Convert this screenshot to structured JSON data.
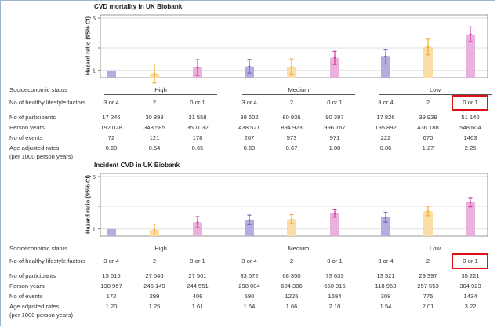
{
  "chart_data": [
    {
      "type": "bar",
      "title": "CVD mortality in UK Biobank",
      "ylabel": "Hazard ratio (95% CI)",
      "yscale": "log",
      "ylim": [
        0.8,
        5.5
      ],
      "yticks": [
        1,
        2,
        5
      ],
      "ytick_labels": [
        "1",
        "",
        "5"
      ],
      "groups": [
        "High",
        "Medium",
        "Low"
      ],
      "categories": [
        "3 or 4",
        "2",
        "0 or 1",
        "3 or 4",
        "2",
        "0 or 1",
        "3 or 4",
        "2",
        "0 or 1"
      ],
      "colors": [
        "#b3aee0",
        "#fbdea6",
        "#eab1dc",
        "#b3aee0",
        "#fbdea6",
        "#eab1dc",
        "#b3aee0",
        "#fbdea6",
        "#eab1dc"
      ],
      "error_colors": [
        "#6b64b5",
        "#f0b030",
        "#cc3c9c",
        "#6b64b5",
        "#f0b030",
        "#cc3c9c",
        "#6b64b5",
        "#f0b030",
        "#cc3c9c"
      ],
      "values": [
        1.0,
        0.91,
        1.09,
        1.13,
        1.12,
        1.47,
        1.52,
        2.06,
        3.03
      ],
      "ci_low": [
        1.0,
        0.68,
        0.86,
        0.92,
        0.89,
        1.2,
        1.22,
        1.62,
        2.42
      ],
      "ci_high": [
        1.0,
        1.22,
        1.39,
        1.4,
        1.42,
        1.8,
        1.89,
        2.62,
        3.8
      ],
      "table": {
        "socio_label": "Socioeconomic status",
        "lifestyle_label": "No of healthy lifestyle factors",
        "rows": [
          {
            "label": "No of participants",
            "values": [
              "17 246",
              "30 893",
              "31 558",
              "39 602",
              "80 936",
              "90 397",
              "17 826",
              "39 939",
              "51 140"
            ]
          },
          {
            "label": "Person years",
            "values": [
              "192 028",
              "343 585",
              "350 032",
              "438 521",
              "894 923",
              "996 167",
              "195 892",
              "436 188",
              "548 604"
            ]
          },
          {
            "label": "No of events",
            "values": [
              "72",
              "121",
              "178",
              "267",
              "573",
              "971",
              "222",
              "670",
              "1463"
            ]
          },
          {
            "label": "Age adjusted rates",
            "sub": "(per 1000 person years)",
            "values": [
              "0.60",
              "0.54",
              "0.65",
              "0.60",
              "0.67",
              "1.00",
              "0.86",
              "1.27",
              "2.25"
            ]
          }
        ]
      }
    },
    {
      "type": "bar",
      "title": "Incident CVD in UK Biobank",
      "ylabel": "Hazard ratio (95% CI)",
      "yscale": "log",
      "ylim": [
        0.8,
        5.5
      ],
      "yticks": [
        1,
        2,
        5
      ],
      "ytick_labels": [
        "1",
        "",
        "5"
      ],
      "groups": [
        "High",
        "Medium",
        "Low"
      ],
      "categories": [
        "3 or 4",
        "2",
        "0 or 1",
        "3 or 4",
        "2",
        "0 or 1",
        "3 or 4",
        "2",
        "0 or 1"
      ],
      "colors": [
        "#b3aee0",
        "#fbdea6",
        "#eab1dc",
        "#b3aee0",
        "#fbdea6",
        "#eab1dc",
        "#b3aee0",
        "#fbdea6",
        "#eab1dc"
      ],
      "error_colors": [
        "#6b64b5",
        "#f0b030",
        "#cc3c9c",
        "#6b64b5",
        "#f0b030",
        "#cc3c9c",
        "#6b64b5",
        "#f0b030",
        "#cc3c9c"
      ],
      "values": [
        1.0,
        0.97,
        1.22,
        1.31,
        1.34,
        1.61,
        1.43,
        1.72,
        2.27
      ],
      "ci_low": [
        1.0,
        0.83,
        1.04,
        1.14,
        1.18,
        1.43,
        1.23,
        1.5,
        1.97
      ],
      "ci_high": [
        1.0,
        1.16,
        1.46,
        1.53,
        1.55,
        1.83,
        1.66,
        2.0,
        2.61
      ],
      "table": {
        "socio_label": "Socioeconomic status",
        "lifestyle_label": "No of healthy lifestyle factors",
        "rows": [
          {
            "label": "No of participants",
            "values": [
              "15 616",
              "27 546",
              "27 561",
              "33 672",
              "68 350",
              "73 633",
              "13 521",
              "29 397",
              "35 221"
            ]
          },
          {
            "label": "Person years",
            "values": [
              "138 967",
              "245 149",
              "244 551",
              "298 004",
              "604 306",
              "650 016",
              "118 953",
              "257 553",
              "304 923"
            ]
          },
          {
            "label": "No of events",
            "values": [
              "172",
              "299",
              "406",
              "590",
              "1225",
              "1694",
              "308",
              "775",
              "1434"
            ]
          },
          {
            "label": "Age adjusted rates",
            "sub": "(per 1000 person years)",
            "values": [
              "1.20",
              "1.25",
              "1.61",
              "1.54",
              "1.66",
              "2.10",
              "1.54",
              "2.01",
              "3.22"
            ]
          }
        ]
      }
    }
  ]
}
